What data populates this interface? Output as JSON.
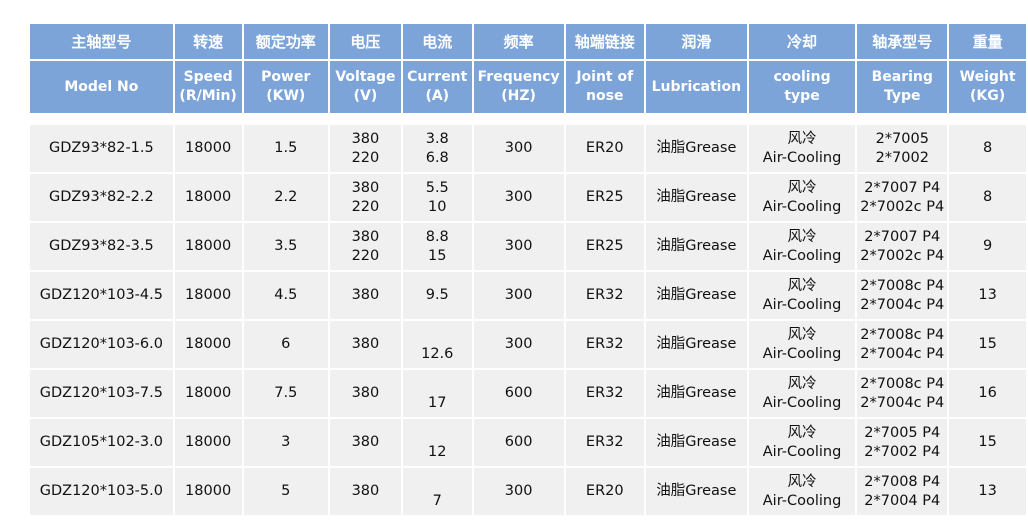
{
  "table": {
    "headers": [
      {
        "cn": "主轴型号",
        "en1": "Model No",
        "en2": ""
      },
      {
        "cn": "转速",
        "en1": "Speed",
        "en2": "(R/Min)"
      },
      {
        "cn": "额定功率",
        "en1": "Power",
        "en2": "(KW)"
      },
      {
        "cn": "电压",
        "en1": "Voltage",
        "en2": "(V)"
      },
      {
        "cn": "电流",
        "en1": "Current",
        "en2": "(A)"
      },
      {
        "cn": "频率",
        "en1": "Frequency",
        "en2": "(HZ)"
      },
      {
        "cn": "轴端链接",
        "en1": "Joint of",
        "en2": "nose"
      },
      {
        "cn": "润滑",
        "en1": "Lubrication",
        "en2": ""
      },
      {
        "cn": "冷却",
        "en1": "cooling",
        "en2": "type"
      },
      {
        "cn": "轴承型号",
        "en1": "Bearing",
        "en2": "Type"
      },
      {
        "cn": "重量",
        "en1": "Weight",
        "en2": "(KG)"
      }
    ],
    "rows": [
      {
        "model": "GDZ93*82-1.5",
        "speed": "18000",
        "power": "1.5",
        "voltage": [
          "380",
          "220"
        ],
        "current": [
          "3.8",
          "6.8"
        ],
        "frequency": "300",
        "joint": "ER20",
        "lubrication": "油脂Grease",
        "cooling": [
          "风冷",
          "Air-Cooling"
        ],
        "bearing": [
          "2*7005",
          "2*7002"
        ],
        "weight": "8"
      },
      {
        "model": "GDZ93*82-2.2",
        "speed": "18000",
        "power": "2.2",
        "voltage": [
          "380",
          "220"
        ],
        "current": [
          "5.5",
          "10"
        ],
        "frequency": "300",
        "joint": "ER25",
        "lubrication": "油脂Grease",
        "cooling": [
          "风冷",
          "Air-Cooling"
        ],
        "bearing": [
          "2*7007 P4",
          "2*7002c P4"
        ],
        "weight": "8"
      },
      {
        "model": "GDZ93*82-3.5",
        "speed": "18000",
        "power": "3.5",
        "voltage": [
          "380",
          "220"
        ],
        "current": [
          "8.8",
          "15"
        ],
        "frequency": "300",
        "joint": "ER25",
        "lubrication": "油脂Grease",
        "cooling": [
          "风冷",
          "Air-Cooling"
        ],
        "bearing": [
          "2*7007 P4",
          "2*7002c P4"
        ],
        "weight": "9"
      },
      {
        "model": "GDZ120*103-4.5",
        "speed": "18000",
        "power": "4.5",
        "voltage": [
          "380"
        ],
        "current": [
          "9.5"
        ],
        "frequency": "300",
        "joint": "ER32",
        "lubrication": "油脂Grease",
        "cooling": [
          "风冷",
          "Air-Cooling"
        ],
        "bearing": [
          "2*7008c P4",
          "2*7004c P4"
        ],
        "weight": "13"
      },
      {
        "model": "GDZ120*103-6.0",
        "speed": "18000",
        "power": "6",
        "voltage": [
          "380"
        ],
        "current": [
          "12.6"
        ],
        "frequency": "300",
        "joint": "ER32",
        "lubrication": "油脂Grease",
        "cooling": [
          "风冷",
          "Air-Cooling"
        ],
        "bearing": [
          "2*7008c P4",
          "2*7004c P4"
        ],
        "weight": "15"
      },
      {
        "model": "GDZ120*103-7.5",
        "speed": "18000",
        "power": "7.5",
        "voltage": [
          "380"
        ],
        "current": [
          "17"
        ],
        "frequency": "600",
        "joint": "ER32",
        "lubrication": "油脂Grease",
        "cooling": [
          "风冷",
          "Air-Cooling"
        ],
        "bearing": [
          "2*7008c P4",
          "2*7004c P4"
        ],
        "weight": "16"
      },
      {
        "model": "GDZ105*102-3.0",
        "speed": "18000",
        "power": "3",
        "voltage": [
          "380"
        ],
        "current": [
          "12"
        ],
        "frequency": "600",
        "joint": "ER32",
        "lubrication": "油脂Grease",
        "cooling": [
          "风冷",
          "Air-Cooling"
        ],
        "bearing": [
          "2*7005 P4",
          "2*7002 P4"
        ],
        "weight": "15"
      },
      {
        "model": "GDZ120*103-5.0",
        "speed": "18000",
        "power": "5",
        "voltage": [
          "380"
        ],
        "current": [
          "7"
        ],
        "frequency": "300",
        "joint": "ER20",
        "lubrication": "油脂Grease",
        "cooling": [
          "风冷",
          "Air-Cooling"
        ],
        "bearing": [
          "2*7008 P4",
          "2*7004 P4"
        ],
        "weight": "13"
      }
    ]
  },
  "colors": {
    "header_bg": "#7ca4d8",
    "header_text": "#ffffff",
    "row_bg": "#f0f0f0"
  }
}
